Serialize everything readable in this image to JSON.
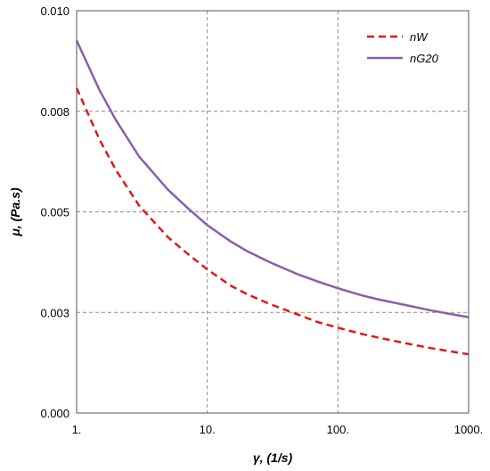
{
  "chart_data": {
    "type": "line",
    "xscale": "log",
    "xlim": [
      1,
      1000
    ],
    "ylim": [
      0,
      0.01
    ],
    "xlabel": "γ, (1/s)",
    "ylabel": "μ, (Pa.s)",
    "grid": true,
    "legend_position": "top-right",
    "x_ticks": [
      {
        "value": 1,
        "label": "1."
      },
      {
        "value": 10,
        "label": "10."
      },
      {
        "value": 100,
        "label": "100."
      },
      {
        "value": 1000,
        "label": "1000."
      }
    ],
    "y_ticks": [
      {
        "value": 0,
        "label": "0.000"
      },
      {
        "value": 0.0025,
        "label": "0.003"
      },
      {
        "value": 0.005,
        "label": "0.005"
      },
      {
        "value": 0.0075,
        "label": "0.008"
      },
      {
        "value": 0.01,
        "label": "0.010"
      }
    ],
    "series": [
      {
        "name": "nW",
        "color": "#e0191b",
        "dash": true,
        "x": [
          1,
          1.5,
          2,
          3,
          5,
          7,
          10,
          15,
          20,
          30,
          50,
          70,
          100,
          150,
          200,
          300,
          500,
          700,
          1000
        ],
        "y": [
          0.00808,
          0.00679,
          0.00604,
          0.00516,
          0.00437,
          0.00397,
          0.00357,
          0.00317,
          0.00296,
          0.00271,
          0.00244,
          0.00226,
          0.00212,
          0.00197,
          0.00188,
          0.00176,
          0.00162,
          0.00154,
          0.00146
        ]
      },
      {
        "name": "nG20",
        "color": "#8a5fa8",
        "dash": false,
        "x": [
          1,
          1.5,
          2,
          3,
          5,
          7,
          10,
          15,
          20,
          30,
          50,
          70,
          100,
          150,
          200,
          300,
          500,
          700,
          1000
        ],
        "y": [
          0.00926,
          0.00802,
          0.00728,
          0.00638,
          0.00555,
          0.00511,
          0.00467,
          0.00427,
          0.00403,
          0.00375,
          0.00344,
          0.00327,
          0.0031,
          0.00293,
          0.00283,
          0.00271,
          0.00256,
          0.00247,
          0.00238
        ]
      }
    ]
  }
}
